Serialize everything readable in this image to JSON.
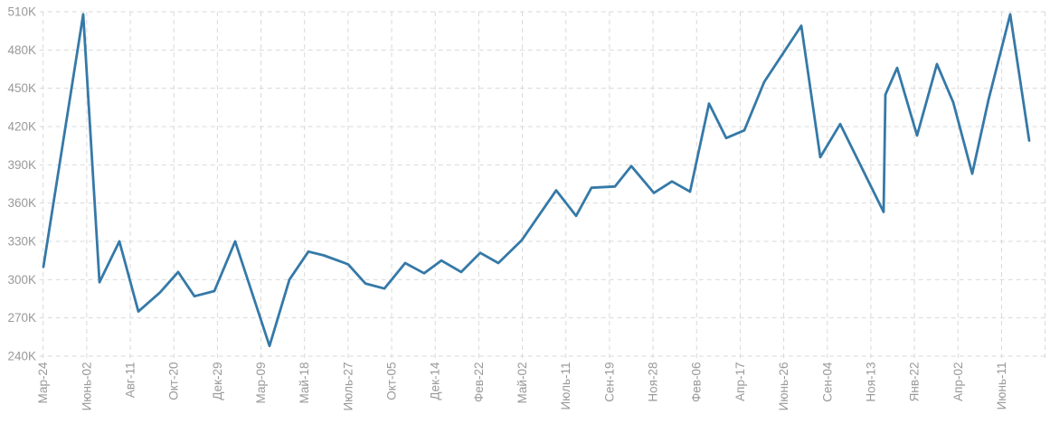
{
  "chart_data": {
    "type": "line",
    "title": "",
    "xlabel": "",
    "ylabel": "",
    "legend": null,
    "grid": true,
    "background_color": "#ffffff",
    "series_color": "#3579a7",
    "grid_color": "#d9d9d9",
    "label_color": "#999999",
    "y_ticks": [
      {
        "label": "510K",
        "value": 510
      },
      {
        "label": "480K",
        "value": 480
      },
      {
        "label": "450K",
        "value": 450
      },
      {
        "label": "420K",
        "value": 420
      },
      {
        "label": "390K",
        "value": 390
      },
      {
        "label": "360K",
        "value": 360
      },
      {
        "label": "330K",
        "value": 330
      },
      {
        "label": "300K",
        "value": 300
      },
      {
        "label": "270K",
        "value": 270
      },
      {
        "label": "240K",
        "value": 240
      }
    ],
    "y_axis": {
      "min": 240,
      "max": 510,
      "step": 30,
      "unit": "K"
    },
    "x_tick_labels": [
      "Мар-24",
      "Июнь-02",
      "Авг-11",
      "Окт-20",
      "Дек-29",
      "Мар-09",
      "Май-18",
      "Июль-27",
      "Окт-05",
      "Дек-14",
      "Фев-22",
      "Май-02",
      "Июль-11",
      "Сен-19",
      "Ноя-28",
      "Фев-06",
      "Апр-17",
      "Июнь-26",
      "Сен-04",
      "Ноя-13",
      "Янв-22",
      "Апр-02",
      "Июнь-11"
    ],
    "x_tick_interval_days": 70,
    "points_note": "x is horizontal position in chart pixels along the time axis, v is value in thousands (K)",
    "points": [
      [
        48,
        310
      ],
      [
        92,
        508
      ],
      [
        110,
        298
      ],
      [
        132,
        330
      ],
      [
        153,
        275
      ],
      [
        177,
        290
      ],
      [
        197,
        306
      ],
      [
        215,
        287
      ],
      [
        237,
        291
      ],
      [
        260,
        330
      ],
      [
        298,
        248
      ],
      [
        320,
        300
      ],
      [
        341,
        322
      ],
      [
        358,
        319
      ],
      [
        385,
        312
      ],
      [
        404,
        297
      ],
      [
        425,
        293
      ],
      [
        448,
        313
      ],
      [
        469,
        305
      ],
      [
        488,
        315
      ],
      [
        510,
        306
      ],
      [
        531,
        321
      ],
      [
        551,
        313
      ],
      [
        577,
        331
      ],
      [
        615,
        370
      ],
      [
        637,
        350
      ],
      [
        654,
        372
      ],
      [
        680,
        373
      ],
      [
        698,
        389
      ],
      [
        723,
        368
      ],
      [
        743,
        377
      ],
      [
        763,
        369
      ],
      [
        784,
        438
      ],
      [
        803,
        411
      ],
      [
        823,
        417
      ],
      [
        845,
        455
      ],
      [
        886,
        499
      ],
      [
        907,
        396
      ],
      [
        929,
        422
      ],
      [
        977,
        353
      ],
      [
        979,
        445
      ],
      [
        992,
        466
      ],
      [
        1014,
        413
      ],
      [
        1036,
        469
      ],
      [
        1054,
        439
      ],
      [
        1075,
        383
      ],
      [
        1093,
        441
      ],
      [
        1117,
        508
      ],
      [
        1138,
        409
      ]
    ]
  }
}
